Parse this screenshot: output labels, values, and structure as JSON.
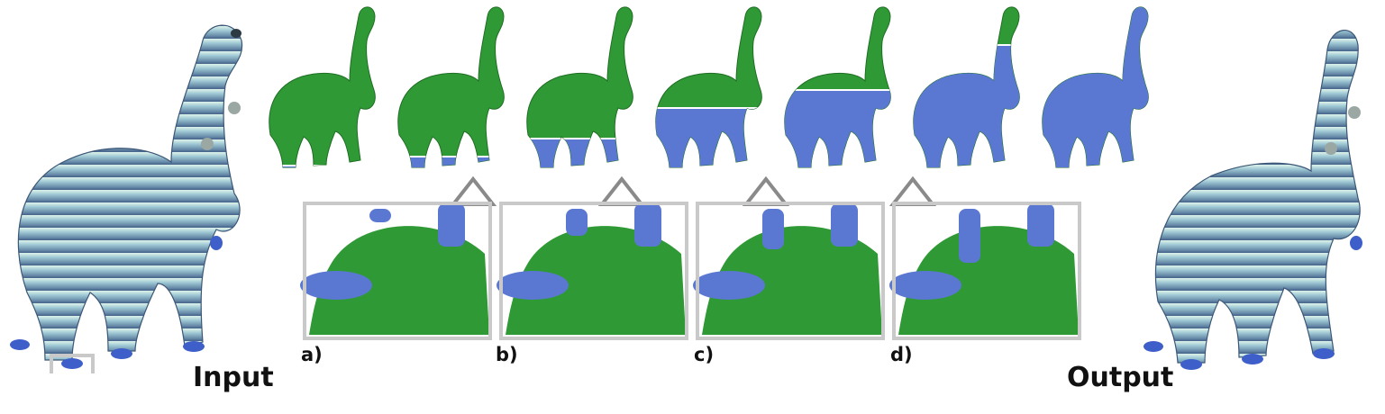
{
  "labels": {
    "input": "Input",
    "output": "Output",
    "panels": [
      "a)",
      "b)",
      "c)",
      "d)"
    ]
  },
  "colors": {
    "green": "#2f9a35",
    "blue": "#5a78d2",
    "stripe_top": "#d7efe6",
    "stripe_bottom": "#4c6f97",
    "frame": "#c9c9c9",
    "triangle": "#8a8a8a"
  },
  "sequence": {
    "count": 7,
    "blue_fraction": [
      0.03,
      0.08,
      0.18,
      0.35,
      0.45,
      0.7,
      1.0
    ]
  }
}
